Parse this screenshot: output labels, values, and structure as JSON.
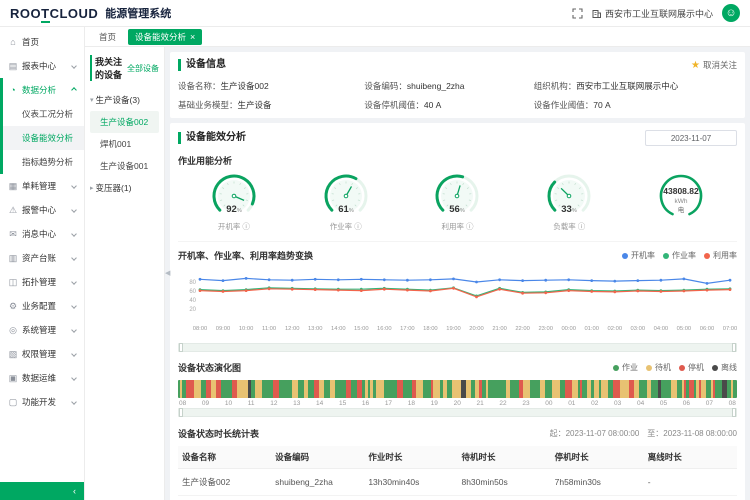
{
  "topbar": {
    "logo_pre": "ROO",
    "logo_t": "T",
    "logo_post": "CLOUD",
    "app_title": "能源管理系统",
    "org": "西安市工业互联网展示中心",
    "avatar_glyph": "☺"
  },
  "tabs": {
    "home": "首页",
    "active": "设备能效分析",
    "close": "×"
  },
  "sidebar": {
    "items": [
      {
        "label": "首页",
        "icon": "home-icon",
        "glyph": "⌂"
      },
      {
        "label": "报表中心",
        "icon": "report-center-icon",
        "glyph": "▤",
        "chevron": "down"
      },
      {
        "label": "数据分析",
        "icon": "data-analysis-icon",
        "glyph": "◔",
        "chevron": "up",
        "active": true,
        "children": [
          "仪表工况分析",
          "设备能效分析",
          "指标趋势分析"
        ],
        "selected_child": "设备能效分析"
      },
      {
        "label": "单耗管理",
        "icon": "consumption-icon",
        "glyph": "▦",
        "chevron": "down"
      },
      {
        "label": "报警中心",
        "icon": "alarm-icon",
        "glyph": "⚠",
        "chevron": "down"
      },
      {
        "label": "消息中心",
        "icon": "message-icon",
        "glyph": "✉",
        "chevron": "down"
      },
      {
        "label": "资产台账",
        "icon": "asset-ledger-icon",
        "glyph": "▥",
        "chevron": "down"
      },
      {
        "label": "拓扑管理",
        "icon": "topology-icon",
        "glyph": "◫",
        "chevron": "down"
      },
      {
        "label": "业务配置",
        "icon": "business-config-icon",
        "glyph": "⚙",
        "chevron": "down"
      },
      {
        "label": "系统管理",
        "icon": "system-admin-icon",
        "glyph": "◎",
        "chevron": "down"
      },
      {
        "label": "权限管理",
        "icon": "permission-icon",
        "glyph": "▧",
        "chevron": "down"
      },
      {
        "label": "数据运维",
        "icon": "data-ops-icon",
        "glyph": "▣",
        "chevron": "down"
      },
      {
        "label": "功能开发",
        "icon": "function-dev-icon",
        "glyph": "▢",
        "chevron": "down"
      }
    ],
    "collapse_glyph": "‹"
  },
  "device_panel": {
    "title": "我关注的设备",
    "all_link": "全部设备",
    "tree": [
      {
        "label": "生产设备(3)",
        "expanded": true,
        "children": [
          "生产设备002",
          "焊机001",
          "生产设备001"
        ],
        "selected": "生产设备002"
      },
      {
        "label": "变压器(1)",
        "expanded": false,
        "children": []
      }
    ]
  },
  "device_info": {
    "title": "设备信息",
    "unfollow": "取消关注",
    "star_glyph": "★",
    "fields": [
      {
        "label": "设备名称：",
        "value": "生产设备002"
      },
      {
        "label": "设备编码：",
        "value": "shuibeng_2zha"
      },
      {
        "label": "组织机构：",
        "value": "西安市工业互联网展示中心"
      },
      {
        "label": "基础业务模型：",
        "value": "生产设备"
      },
      {
        "label": "设备停机阈值：",
        "value": "40 A"
      },
      {
        "label": "设备作业阈值：",
        "value": "70 A"
      }
    ]
  },
  "efficiency": {
    "title": "设备能效分析",
    "date": "2023-11-07",
    "energy_title": "作业用能分析",
    "info_glyph": "ⓘ"
  },
  "chart_data": [
    {
      "type": "gauge-set",
      "gauges": [
        {
          "value": 92,
          "unit": "%",
          "label": "开机率"
        },
        {
          "value": 61,
          "unit": "%",
          "label": "作业率"
        },
        {
          "value": 56,
          "unit": "%",
          "label": "利用率"
        },
        {
          "value": 33,
          "unit": "%",
          "label": "负载率"
        }
      ],
      "total": {
        "value": "43808.82",
        "unit": "kWh",
        "label": "电"
      },
      "accent": "#0aa360"
    },
    {
      "type": "line",
      "title": "开机率、作业率、利用率趋势变换",
      "x": [
        "08:00",
        "09:00",
        "10:00",
        "11:00",
        "12:00",
        "13:00",
        "14:00",
        "15:00",
        "16:00",
        "17:00",
        "18:00",
        "19:00",
        "20:00",
        "21:00",
        "22:00",
        "23:00",
        "00:00",
        "01:00",
        "02:00",
        "03:00",
        "04:00",
        "05:00",
        "06:00",
        "07:00"
      ],
      "series": [
        {
          "name": "开机率",
          "color": "#4a87e8",
          "values": [
            86,
            83,
            88,
            85,
            84,
            86,
            85,
            86,
            85,
            84,
            85,
            87,
            80,
            85,
            83,
            84,
            85,
            83,
            82,
            83,
            84,
            87,
            77,
            84
          ]
        },
        {
          "name": "作业率",
          "color": "#33b578",
          "values": [
            63,
            61,
            63,
            67,
            66,
            65,
            64,
            64,
            66,
            64,
            62,
            67,
            49,
            66,
            57,
            58,
            63,
            61,
            60,
            62,
            61,
            62,
            64,
            65
          ]
        },
        {
          "name": "利用率",
          "color": "#f2654c",
          "values": [
            61,
            59,
            61,
            65,
            64,
            63,
            62,
            61,
            64,
            62,
            60,
            66,
            47,
            64,
            55,
            56,
            61,
            59,
            58,
            60,
            59,
            60,
            62,
            63
          ]
        }
      ],
      "ylim": [
        0,
        100
      ],
      "yticks": [
        20,
        40,
        60,
        80
      ],
      "legend_position": "top-right",
      "grid": false
    },
    {
      "type": "status-timeline",
      "title": "设备状态演化图",
      "hours": [
        "08",
        "09",
        "10",
        "11",
        "12",
        "13",
        "14",
        "15",
        "16",
        "17",
        "18",
        "19",
        "20",
        "21",
        "22",
        "23",
        "00",
        "01",
        "02",
        "03",
        "04",
        "05",
        "06",
        "07",
        "08"
      ],
      "states": [
        {
          "name": "作业",
          "color": "#46a05e",
          "proportion": 0.52
        },
        {
          "name": "待机",
          "color": "#e8c272",
          "proportion": 0.3
        },
        {
          "name": "停机",
          "color": "#df5a4e",
          "proportion": 0.16
        },
        {
          "name": "离线",
          "color": "#4a4a4a",
          "proportion": 0.02
        }
      ],
      "legend_position": "top-right"
    }
  ],
  "status_table": {
    "title": "设备状态时长统计表",
    "range_from": "起：2023-11-07 08:00:00",
    "range_to": "至：2023-11-08 08:00:00",
    "headers": [
      "设备名称",
      "设备编码",
      "作业时长",
      "待机时长",
      "停机时长",
      "离线时长"
    ],
    "rows": [
      [
        "生产设备002",
        "shuibeng_2zha",
        "13h30min40s",
        "8h30min50s",
        "7h58min30s",
        "-"
      ]
    ]
  }
}
